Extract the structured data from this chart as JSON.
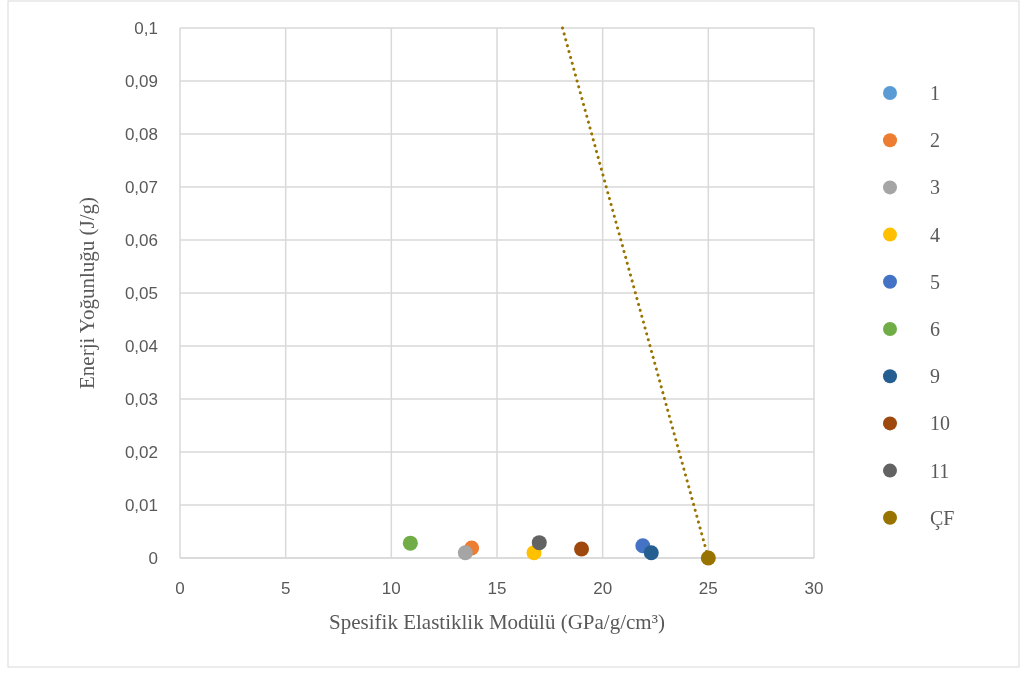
{
  "chart_data": {
    "type": "scatter",
    "xlabel": "Spesifik Elastiklik Modülü (GPa/g/cm³)",
    "ylabel": "Enerji Yoğunluğu (J/g)",
    "xlim": [
      0,
      30
    ],
    "xticks": [
      0,
      5,
      10,
      15,
      20,
      25,
      30
    ],
    "ylim": [
      0,
      0.1
    ],
    "yticks": [
      0,
      {
        "value": 0.01,
        "label": "0,01"
      },
      {
        "value": 0.02,
        "label": "0,02"
      },
      {
        "value": 0.03,
        "label": "0,03"
      },
      {
        "value": 0.04,
        "label": "0,04"
      },
      {
        "value": 0.05,
        "label": "0,05"
      },
      {
        "value": 0.06,
        "label": "0,06"
      },
      {
        "value": 0.07,
        "label": "0,07"
      },
      {
        "value": 0.08,
        "label": "0,08"
      },
      {
        "value": 0.09,
        "label": "0,09"
      },
      {
        "value": 0.1,
        "label": "0,1"
      }
    ],
    "grid": true,
    "legend": "right",
    "marker": "circle",
    "series": [
      {
        "name": "1",
        "color": "#5b9bd5",
        "x": [
          null
        ],
        "values": [
          null
        ]
      },
      {
        "name": "2",
        "color": "#ed7d31",
        "x": [
          13.8
        ],
        "values": [
          0.0019
        ]
      },
      {
        "name": "3",
        "color": "#a5a5a5",
        "x": [
          13.5
        ],
        "values": [
          0.001
        ]
      },
      {
        "name": "4",
        "color": "#ffc000",
        "x": [
          16.75
        ],
        "values": [
          0.001
        ]
      },
      {
        "name": "5",
        "color": "#4472c4",
        "x": [
          21.9
        ],
        "values": [
          0.0023
        ]
      },
      {
        "name": "6",
        "color": "#70ad47",
        "x": [
          10.9
        ],
        "values": [
          0.0028
        ]
      },
      {
        "name": "9",
        "color": "#255e91",
        "x": [
          22.3
        ],
        "values": [
          0.001
        ]
      },
      {
        "name": "10",
        "color": "#9e480e",
        "x": [
          19.0
        ],
        "values": [
          0.0017
        ]
      },
      {
        "name": "11",
        "color": "#636363",
        "x": [
          17.0
        ],
        "values": [
          0.0029
        ]
      },
      {
        "name": "ÇF",
        "color": "#997300",
        "x": [
          25.0
        ],
        "values": [
          0
        ]
      },
      {
        "type": "line",
        "color": "#997300",
        "line_style": "dotted",
        "marker": "none",
        "x": [
          18.1,
          25.0
        ],
        "values": [
          0.1,
          0
        ]
      }
    ]
  }
}
